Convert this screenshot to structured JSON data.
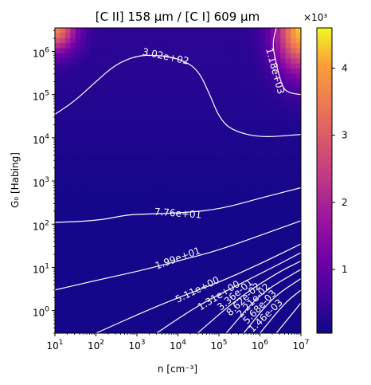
{
  "chart_data": {
    "type": "heatmap",
    "title": "[C II] 158 μm / [C I] 609 μm",
    "xlabel": "n [cm⁻³]",
    "ylabel": "G₀ [Habing]",
    "x_scale": "log",
    "y_scale": "log",
    "xlim": [
      10,
      10000000
    ],
    "ylim": [
      0.3,
      3500000
    ],
    "x_ticks": [
      {
        "value": 10,
        "base": "10",
        "exp": "1"
      },
      {
        "value": 100,
        "base": "10",
        "exp": "2"
      },
      {
        "value": 1000,
        "base": "10",
        "exp": "3"
      },
      {
        "value": 10000,
        "base": "10",
        "exp": "4"
      },
      {
        "value": 100000,
        "base": "10",
        "exp": "5"
      },
      {
        "value": 1000000,
        "base": "10",
        "exp": "6"
      },
      {
        "value": 10000000,
        "base": "10",
        "exp": "7"
      }
    ],
    "y_ticks": [
      {
        "value": 1,
        "base": "10",
        "exp": "0"
      },
      {
        "value": 10,
        "base": "10",
        "exp": "1"
      },
      {
        "value": 100,
        "base": "10",
        "exp": "2"
      },
      {
        "value": 1000,
        "base": "10",
        "exp": "3"
      },
      {
        "value": 10000,
        "base": "10",
        "exp": "4"
      },
      {
        "value": 100000,
        "base": "10",
        "exp": "5"
      },
      {
        "value": 1000000,
        "base": "10",
        "exp": "6"
      }
    ],
    "colormap": "plasma",
    "colorbar": {
      "range": [
        0.05,
        4.6
      ],
      "multiplier_label": "×10³",
      "ticks": [
        "1",
        "2",
        "3",
        "4"
      ]
    },
    "contours": [
      {
        "label": "3.02e+02",
        "points": [
          [
            10,
            35000
          ],
          [
            30,
            70000
          ],
          [
            100,
            200000
          ],
          [
            300,
            500000
          ],
          [
            1000,
            800000
          ],
          [
            3000,
            820000
          ],
          [
            10000,
            700000
          ],
          [
            30000,
            400000
          ],
          [
            60000,
            100000
          ],
          [
            100000,
            30000
          ],
          [
            200000,
            15000
          ],
          [
            1000000,
            10000
          ],
          [
            10000000,
            12000
          ]
        ]
      },
      {
        "label": "1.18e+03",
        "points": [
          [
            2500000,
            3500000
          ],
          [
            2000000,
            1500000
          ],
          [
            2500000,
            500000
          ],
          [
            3500000,
            150000
          ],
          [
            5000000,
            110000
          ],
          [
            10000000,
            100000
          ]
        ]
      },
      {
        "label": "7.76e+01",
        "points": [
          [
            10,
            110
          ],
          [
            100,
            120
          ],
          [
            500,
            160
          ],
          [
            1000,
            170
          ],
          [
            10000,
            180
          ],
          [
            100000,
            220
          ],
          [
            1000000,
            400
          ],
          [
            10000000,
            700
          ]
        ]
      },
      {
        "label": "1.99e+01",
        "points": [
          [
            10,
            3
          ],
          [
            100,
            5
          ],
          [
            1000,
            8
          ],
          [
            10000,
            14
          ],
          [
            100000,
            25
          ],
          [
            1000000,
            55
          ],
          [
            10000000,
            120
          ]
        ]
      },
      {
        "label": "5.11e+00",
        "points": [
          [
            100,
            0.3
          ],
          [
            1000,
            0.8
          ],
          [
            10000,
            2
          ],
          [
            100000,
            4.5
          ],
          [
            1000000,
            12
          ],
          [
            10000000,
            35
          ]
        ]
      },
      {
        "label": "1.31e+00",
        "points": [
          [
            3000,
            0.3
          ],
          [
            30000,
            1.3
          ],
          [
            300000,
            4
          ],
          [
            3000000,
            12
          ],
          [
            10000000,
            22
          ]
        ]
      },
      {
        "label": "3.36e-01",
        "points": [
          [
            30000,
            0.3
          ],
          [
            300000,
            2
          ],
          [
            3000000,
            8
          ],
          [
            10000000,
            14
          ]
        ]
      },
      {
        "label": "8.62e-02",
        "points": [
          [
            150000,
            0.3
          ],
          [
            1000000,
            2.5
          ],
          [
            10000000,
            9
          ]
        ]
      },
      {
        "label": "2.21e-02",
        "points": [
          [
            400000,
            0.3
          ],
          [
            2000000,
            2
          ],
          [
            10000000,
            5.5
          ]
        ]
      },
      {
        "label": "5.68e-03",
        "points": [
          [
            1000000,
            0.3
          ],
          [
            4000000,
            1.5
          ],
          [
            10000000,
            3
          ]
        ]
      },
      {
        "label": "1.46e-03",
        "points": [
          [
            2500000,
            0.3
          ],
          [
            10000000,
            1.5
          ]
        ]
      }
    ],
    "contour_labels": [
      {
        "text": "3.02e+02",
        "at": [
          5000,
          750000
        ],
        "angle": 12
      },
      {
        "text": "1.18e+03",
        "at": [
          2300000,
          350000
        ],
        "angle": 75
      },
      {
        "text": "7.76e+01",
        "at": [
          10000,
          175
        ],
        "angle": 4
      },
      {
        "text": "1.99e+01",
        "at": [
          10000,
          16
        ],
        "angle": -20
      },
      {
        "text": "5.11e+00",
        "at": [
          30000,
          3
        ],
        "angle": -26
      },
      {
        "text": "1.31e+00",
        "at": [
          100000,
          2.2
        ],
        "angle": -32
      },
      {
        "text": "3.36e-01",
        "at": [
          250000,
          2.3
        ],
        "angle": -40
      },
      {
        "text": "8.62e-02",
        "at": [
          400000,
          1.8
        ],
        "angle": -44
      },
      {
        "text": "2.21e-02",
        "at": [
          700000,
          1.7
        ],
        "angle": -46
      },
      {
        "text": "5.68e-03",
        "at": [
          1000000,
          1.2
        ],
        "angle": -46
      },
      {
        "text": "1.46e-03",
        "at": [
          1400000,
          0.75
        ],
        "angle": -44
      }
    ]
  }
}
